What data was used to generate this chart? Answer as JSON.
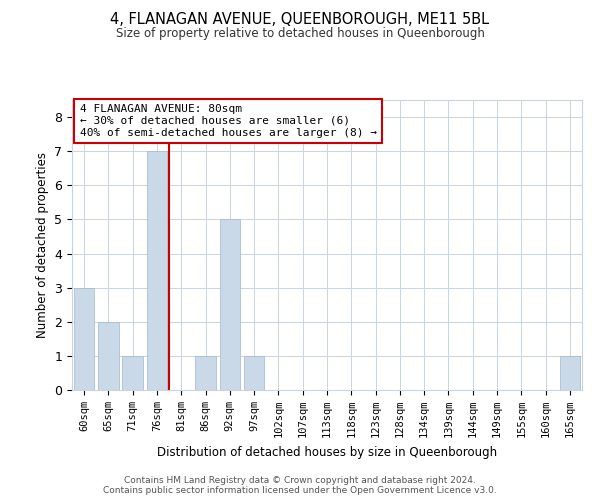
{
  "title": "4, FLANAGAN AVENUE, QUEENBOROUGH, ME11 5BL",
  "subtitle": "Size of property relative to detached houses in Queenborough",
  "xlabel": "Distribution of detached houses by size in Queenborough",
  "ylabel": "Number of detached properties",
  "categories": [
    "60sqm",
    "65sqm",
    "71sqm",
    "76sqm",
    "81sqm",
    "86sqm",
    "92sqm",
    "97sqm",
    "102sqm",
    "107sqm",
    "113sqm",
    "118sqm",
    "123sqm",
    "128sqm",
    "134sqm",
    "139sqm",
    "144sqm",
    "149sqm",
    "155sqm",
    "160sqm",
    "165sqm"
  ],
  "values": [
    3,
    2,
    1,
    7,
    0,
    1,
    5,
    1,
    0,
    0,
    0,
    0,
    0,
    0,
    0,
    0,
    0,
    0,
    0,
    0,
    1
  ],
  "bar_color": "#c9d9e8",
  "bar_edgecolor": "#a0b8cc",
  "vline_x": 3.5,
  "vline_color": "#cc0000",
  "annotation_title": "4 FLANAGAN AVENUE: 80sqm",
  "annotation_line1": "← 30% of detached houses are smaller (6)",
  "annotation_line2": "40% of semi-detached houses are larger (8) →",
  "annotation_box_edgecolor": "#cc0000",
  "ylim": [
    0,
    8.5
  ],
  "yticks": [
    0,
    1,
    2,
    3,
    4,
    5,
    6,
    7,
    8
  ],
  "footer_line1": "Contains HM Land Registry data © Crown copyright and database right 2024.",
  "footer_line2": "Contains public sector information licensed under the Open Government Licence v3.0.",
  "background_color": "#ffffff",
  "grid_color": "#c8d4e0"
}
